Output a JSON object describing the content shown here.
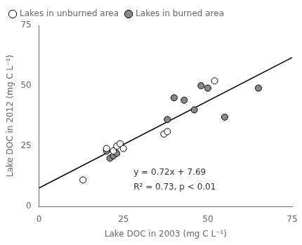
{
  "chart_data": {
    "type": "scatter",
    "xlabel": "Lake DOC in 2003 (mg C L⁻¹)",
    "ylabel": "Lake DOC in 2012 (mg C L⁻¹)",
    "series": [
      {
        "name": "Lakes in unburned area",
        "type": "scatter",
        "marker": "circle",
        "color": "white",
        "x": [
          13,
          20,
          22,
          23,
          24,
          25,
          37,
          38,
          52
        ],
        "values": [
          11,
          24,
          23,
          25,
          26,
          24,
          30,
          31,
          52
        ]
      },
      {
        "name": "Lakes in burned area",
        "type": "scatter",
        "marker": "circle",
        "color": "#888888",
        "x": [
          20,
          21,
          22,
          23,
          38,
          40,
          43,
          46,
          48,
          50,
          55,
          65
        ],
        "values": [
          23,
          20,
          21,
          22,
          36,
          45,
          44,
          40,
          50,
          49,
          37,
          49
        ]
      },
      {
        "type": "line",
        "line_style": "solid",
        "color": "black",
        "x": [
          0,
          75
        ],
        "values": [
          7.69,
          61.69
        ]
      }
    ],
    "annotations": [
      {
        "text": "y = 0.72x + 7.69",
        "x": 28,
        "y": 14
      },
      {
        "text": "R² = 0.73, p < 0.01",
        "x": 28,
        "y": 8
      }
    ],
    "xlim": [
      0,
      75
    ],
    "ylim": [
      0,
      75
    ],
    "xticks": [
      0,
      25,
      50,
      75
    ],
    "yticks": [
      0,
      25,
      50,
      75
    ],
    "grid": false,
    "legend": "upper left"
  }
}
